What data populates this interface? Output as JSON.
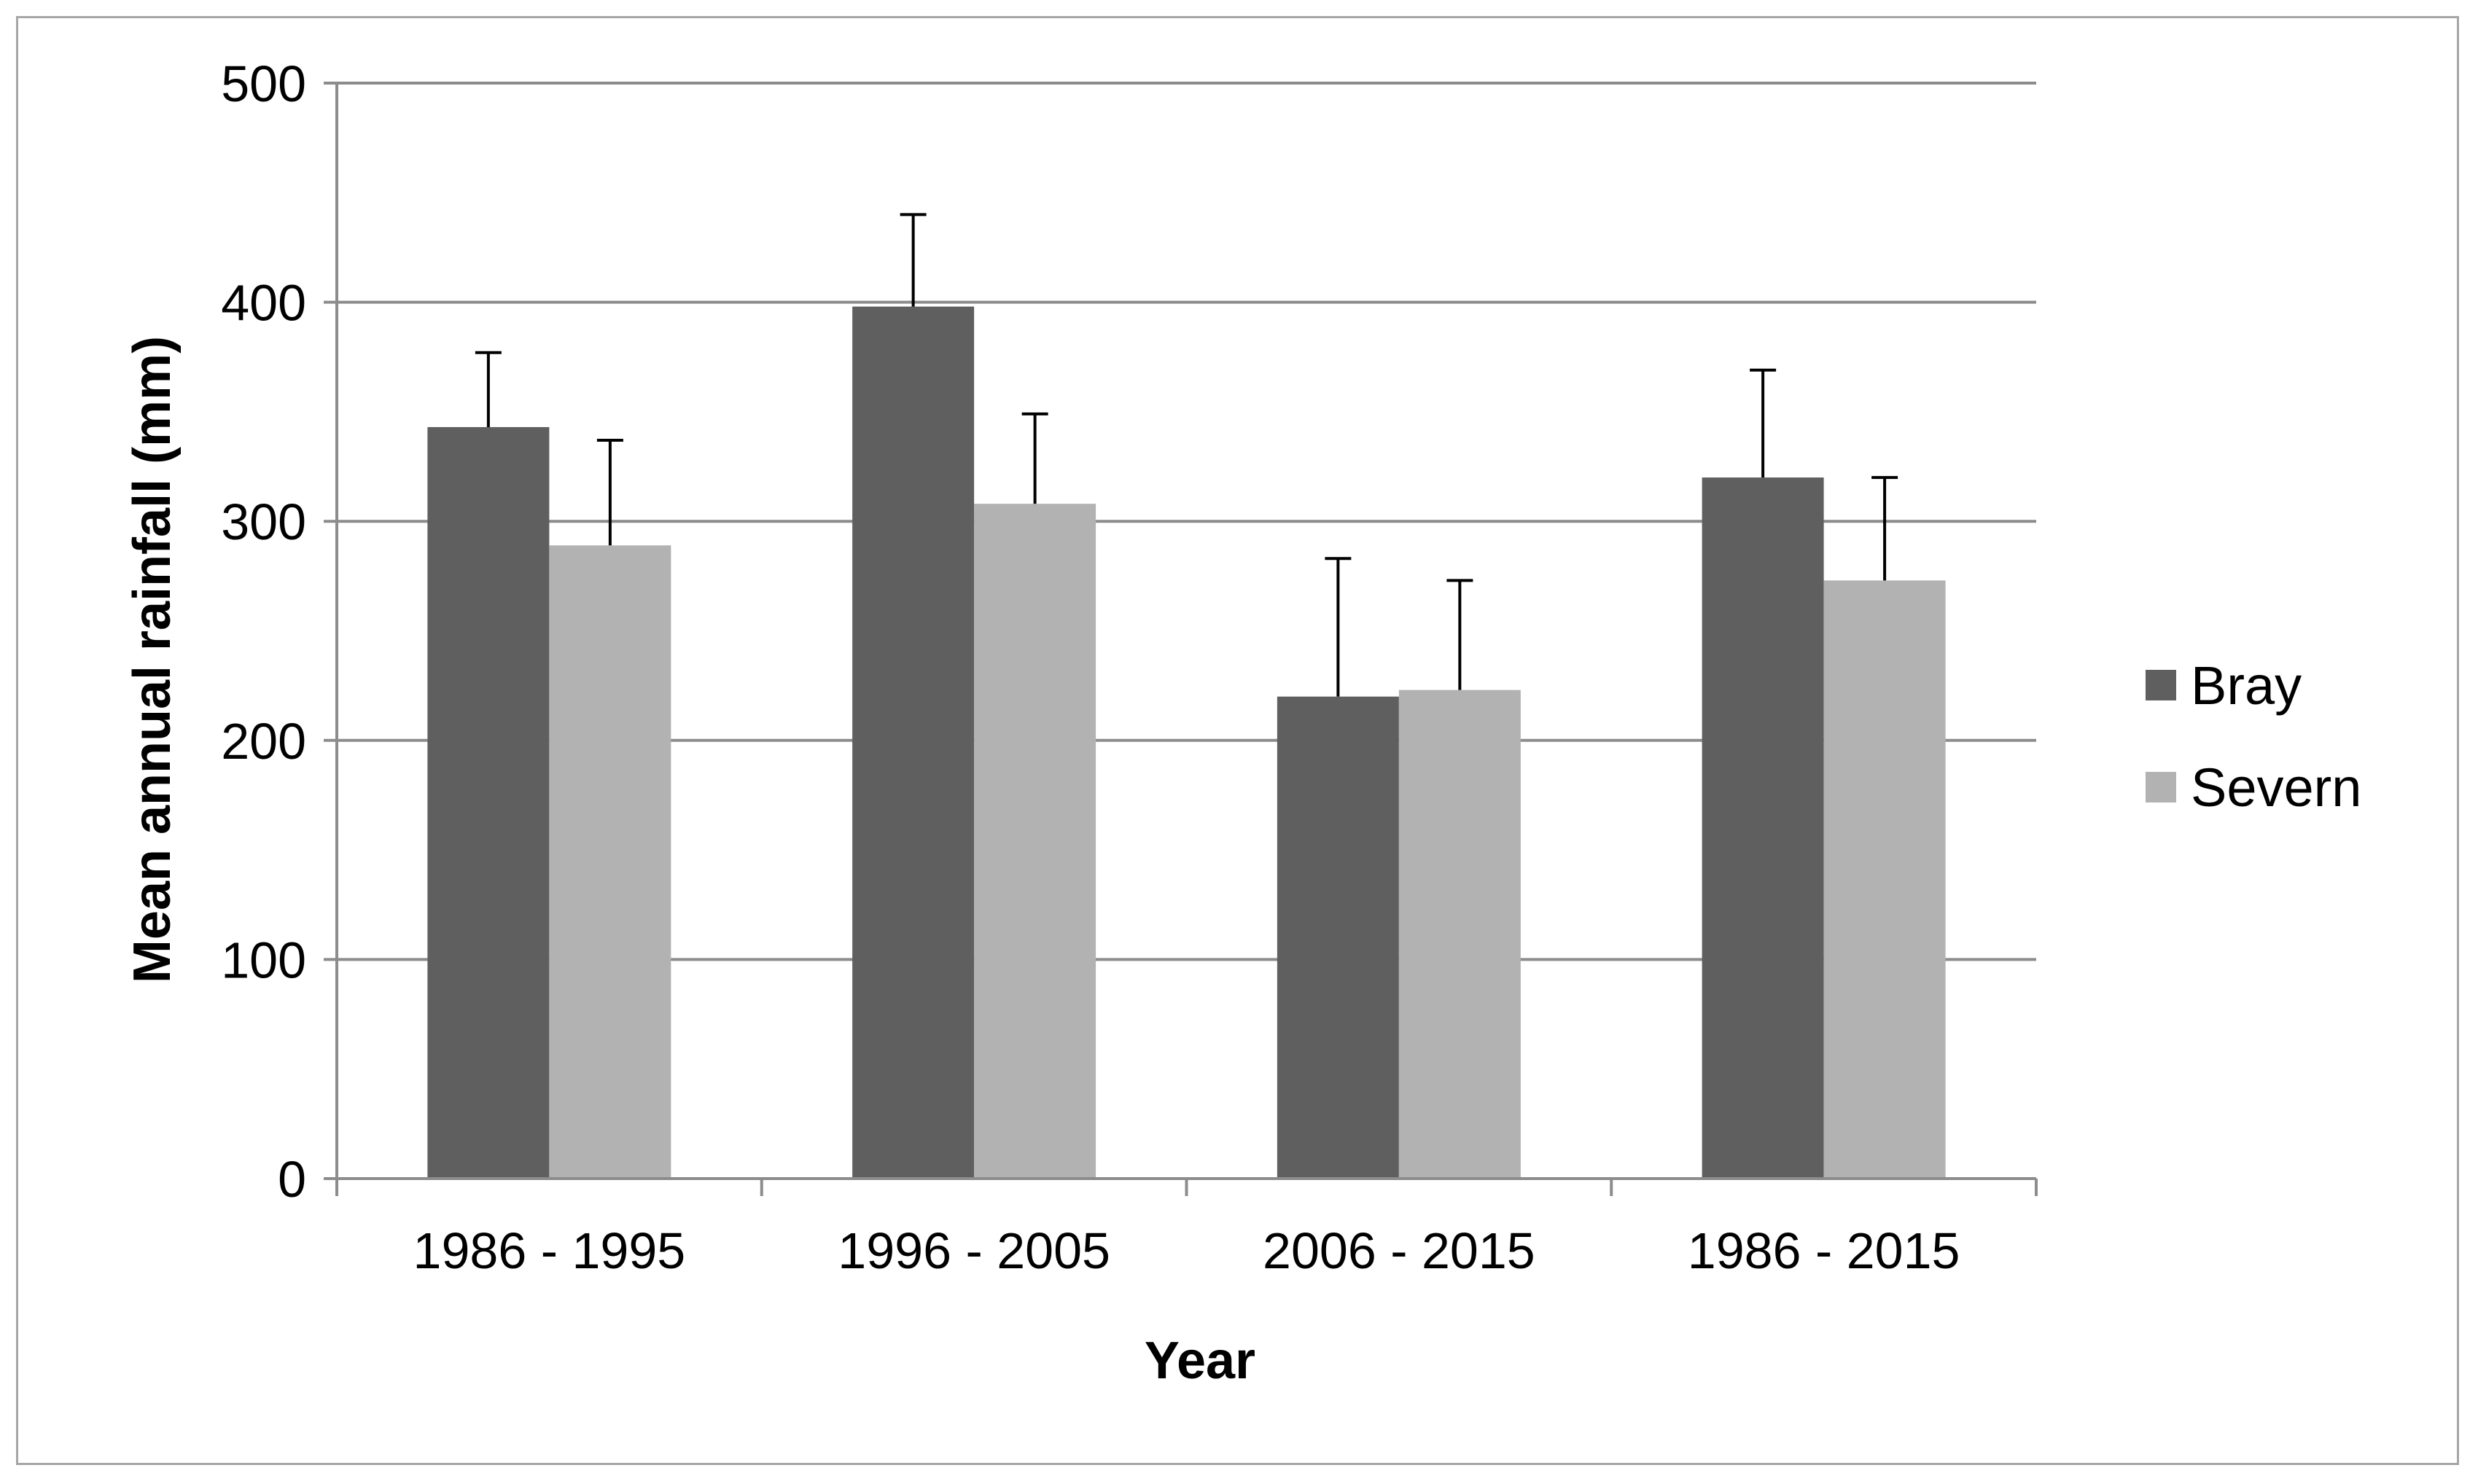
{
  "chart_data": {
    "type": "bar",
    "title": "",
    "xlabel": "Year",
    "ylabel": "Mean annual rainfall (mm)",
    "categories": [
      "1986 - 1995",
      "1996 - 2005",
      "2006 - 2015",
      "1986 - 2015"
    ],
    "series": [
      {
        "name": "Bray",
        "color": "#5f5f5f",
        "values": [
          343,
          398,
          220,
          320
        ],
        "error_plus": [
          34,
          42,
          63,
          49
        ]
      },
      {
        "name": "Severn",
        "color": "#b2b2b2",
        "values": [
          289,
          308,
          223,
          273
        ],
        "error_plus": [
          48,
          41,
          50,
          47
        ]
      }
    ],
    "ylim": [
      0,
      500
    ],
    "yticks": [
      0,
      100,
      200,
      300,
      400,
      500
    ],
    "grid": true,
    "legend_position": "right"
  }
}
